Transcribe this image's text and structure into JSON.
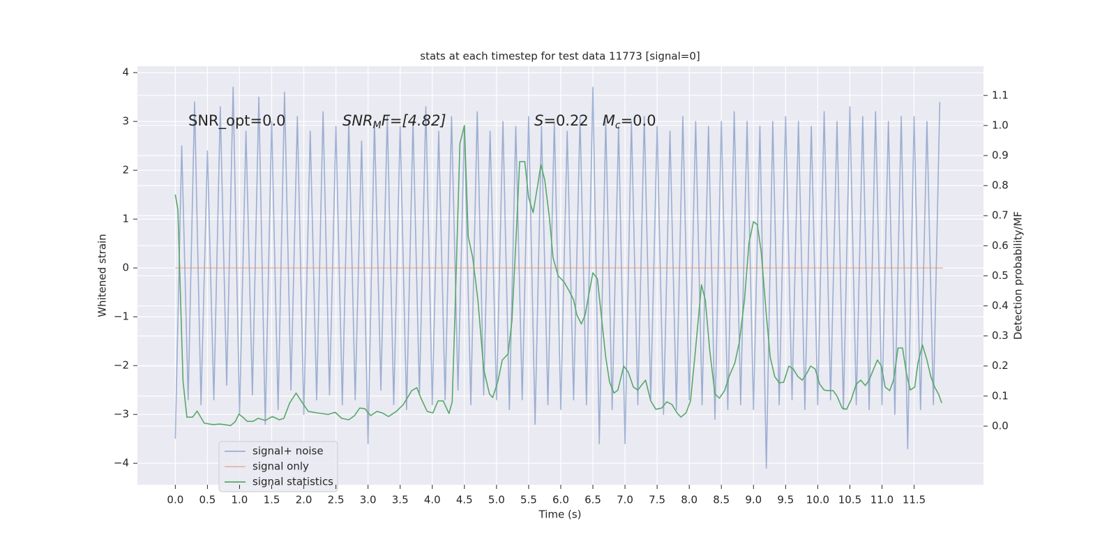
{
  "chart_data": {
    "type": "line",
    "title": "stats at each timestep for test data 11773 [signal=0]",
    "xlabel": "Time (s)",
    "ylabel": "Whitened strain",
    "y2label": "Detection probability/MF",
    "annotations": [
      {
        "text": "SNR_opt=0.0"
      },
      {
        "parts": [
          "SNR",
          "M",
          "F=[4.82]"
        ]
      },
      {
        "parts": [
          "S",
          "=0.22   ",
          "M",
          "c",
          "=0.0"
        ]
      }
    ],
    "xlim": [
      -0.59,
      12.58
    ],
    "ylim": [
      -4.44,
      4.13
    ],
    "y2lim": [
      -0.195,
      1.197
    ],
    "xticks": [
      {
        "value": 0,
        "label": "0.0"
      },
      0.5,
      {
        "value": 1,
        "label": "1.0"
      },
      1.5,
      {
        "value": 2,
        "label": "2.0"
      },
      2.5,
      {
        "value": 3,
        "label": "3.0"
      },
      3.5,
      {
        "value": 4,
        "label": "4.0"
      },
      4.5,
      {
        "value": 5,
        "label": "5.0"
      },
      5.5,
      {
        "value": 6,
        "label": "6.0"
      },
      6.5,
      {
        "value": 7,
        "label": "7.0"
      },
      7.5,
      {
        "value": 8,
        "label": "8.0"
      },
      8.5,
      {
        "value": 9,
        "label": "9.0"
      },
      9.5,
      {
        "value": 10,
        "label": "10.0"
      },
      10.5,
      {
        "value": 11,
        "label": "11.0"
      },
      11.5
    ],
    "yticks": [
      {
        "value": -4,
        "label": "−4"
      },
      {
        "value": -3,
        "label": "−3"
      },
      {
        "value": -2,
        "label": "−2"
      },
      {
        "value": -1,
        "label": "−1"
      },
      0,
      1,
      2,
      3,
      4
    ],
    "y2ticks": [
      {
        "value": 0,
        "label": "0.0"
      },
      0.1,
      0.2,
      0.3,
      0.4,
      0.5,
      0.6,
      0.7,
      0.8,
      0.9,
      {
        "value": 1,
        "label": "1.0"
      },
      1.1
    ],
    "grid": true,
    "legend": "lower left",
    "series": [
      {
        "name": "signal+ noise",
        "color": "#4c72b0",
        "opacity": 0.5,
        "x": [
          0.0,
          0.1,
          0.2,
          0.3,
          0.4,
          0.5,
          0.6,
          0.7,
          0.8,
          0.9,
          1.0,
          1.1,
          1.2,
          1.3,
          1.4,
          1.5,
          1.6,
          1.7,
          1.8,
          1.9,
          2.0,
          2.1,
          2.2,
          2.3,
          2.4,
          2.5,
          2.6,
          2.7,
          2.8,
          2.9,
          3.0,
          3.1,
          3.2,
          3.3,
          3.4,
          3.5,
          3.6,
          3.7,
          3.8,
          3.9,
          4.0,
          4.1,
          4.2,
          4.3,
          4.4,
          4.5,
          4.6,
          4.7,
          4.8,
          4.9,
          5.0,
          5.1,
          5.2,
          5.3,
          5.4,
          5.5,
          5.6,
          5.7,
          5.8,
          5.9,
          6.0,
          6.1,
          6.2,
          6.3,
          6.4,
          6.5,
          6.6,
          6.7,
          6.8,
          6.9,
          7.0,
          7.1,
          7.2,
          7.3,
          7.4,
          7.5,
          7.6,
          7.7,
          7.8,
          7.9,
          8.0,
          8.1,
          8.2,
          8.3,
          8.4,
          8.5,
          8.6,
          8.7,
          8.8,
          8.9,
          9.0,
          9.1,
          9.2,
          9.3,
          9.4,
          9.5,
          9.6,
          9.7,
          9.8,
          9.9,
          10.0,
          10.1,
          10.2,
          10.3,
          10.4,
          10.5,
          10.6,
          10.7,
          10.8,
          10.9,
          11.0,
          11.1,
          11.2,
          11.3,
          11.4,
          11.5,
          11.6,
          11.7,
          11.8,
          11.9
        ],
        "values": [
          -3.5,
          2.5,
          -2.7,
          3.4,
          -2.8,
          2.4,
          -2.7,
          3.3,
          -2.4,
          3.7,
          -3.0,
          2.8,
          -2.6,
          3.5,
          -3.2,
          3.0,
          -2.9,
          3.6,
          -2.5,
          3.1,
          -3.0,
          2.8,
          -2.7,
          3.2,
          -2.6,
          2.9,
          -2.8,
          3.0,
          -2.7,
          2.6,
          -3.6,
          3.0,
          -2.5,
          3.1,
          -2.8,
          2.9,
          -2.9,
          3.0,
          -2.6,
          3.3,
          -2.8,
          2.8,
          -2.7,
          3.1,
          -2.5,
          2.9,
          -2.8,
          3.2,
          -2.6,
          2.8,
          -2.7,
          3.0,
          -2.9,
          2.9,
          -2.7,
          3.1,
          -3.2,
          2.9,
          -2.8,
          3.0,
          -2.9,
          2.8,
          -2.7,
          3.1,
          -2.8,
          3.7,
          -3.6,
          3.0,
          -2.9,
          2.9,
          -3.6,
          3.0,
          -2.8,
          3.1,
          -2.7,
          2.9,
          -3.0,
          2.8,
          -2.9,
          3.1,
          -2.7,
          3.0,
          -2.8,
          2.9,
          -3.1,
          3.0,
          -2.9,
          3.2,
          -2.8,
          3.0,
          -2.9,
          2.9,
          -4.1,
          3.0,
          -2.8,
          3.1,
          -2.7,
          3.0,
          -2.9,
          2.9,
          -2.8,
          3.2,
          -2.7,
          3.0,
          -2.9,
          3.3,
          -2.8,
          3.1,
          -2.9,
          3.2,
          -2.8,
          3.0,
          -3.0,
          3.1,
          -3.7,
          3.1,
          -2.9,
          3.0,
          -2.8,
          3.4
        ]
      },
      {
        "name": "signal only",
        "color": "#dd8452",
        "opacity": 0.5,
        "x": [
          0.0,
          11.95
        ],
        "values": [
          0,
          0
        ]
      },
      {
        "name": "signal statistics",
        "color": "#55a868",
        "opacity": 1,
        "axis": "y2",
        "x": [
          0,
          0.04,
          0.12,
          0.18,
          0.27,
          0.34,
          0.45,
          0.59,
          0.69,
          0.86,
          0.93,
          0.99,
          1.05,
          1.12,
          1.21,
          1.29,
          1.4,
          1.51,
          1.62,
          1.69,
          1.78,
          1.88,
          1.98,
          2.07,
          2.21,
          2.38,
          2.49,
          2.59,
          2.7,
          2.79,
          2.87,
          2.95,
          3.04,
          3.14,
          3.22,
          3.32,
          3.44,
          3.55,
          3.68,
          3.76,
          3.82,
          3.92,
          4.01,
          4.09,
          4.17,
          4.26,
          4.31,
          4.35,
          4.43,
          4.5,
          4.56,
          4.63,
          4.71,
          4.8,
          4.89,
          4.94,
          5.02,
          5.09,
          5.18,
          5.24,
          5.31,
          5.36,
          5.44,
          5.5,
          5.57,
          5.64,
          5.69,
          5.75,
          5.82,
          5.88,
          5.96,
          6.05,
          6.13,
          6.2,
          6.25,
          6.32,
          6.38,
          6.43,
          6.5,
          6.57,
          6.63,
          6.7,
          6.76,
          6.83,
          6.89,
          6.98,
          7.05,
          7.13,
          7.2,
          7.26,
          7.32,
          7.4,
          7.48,
          7.57,
          7.65,
          7.73,
          7.81,
          7.87,
          7.95,
          8.02,
          8.1,
          8.19,
          8.25,
          8.32,
          8.4,
          8.47,
          8.55,
          8.62,
          8.71,
          8.78,
          8.86,
          8.93,
          9.0,
          9.06,
          9.12,
          9.2,
          9.26,
          9.33,
          9.4,
          9.47,
          9.55,
          9.62,
          9.69,
          9.76,
          9.83,
          9.89,
          9.96,
          10.03,
          10.1,
          10.16,
          10.24,
          10.3,
          10.38,
          10.45,
          10.52,
          10.6,
          10.67,
          10.74,
          10.8,
          10.87,
          10.93,
          10.99,
          11.05,
          11.12,
          11.18,
          11.25,
          11.32,
          11.38,
          11.44,
          11.51,
          11.56,
          11.63,
          11.7,
          11.76,
          11.82,
          11.88,
          11.93
        ],
        "values": [
          0.77,
          0.72,
          0.15,
          0.03,
          0.03,
          0.05,
          0.01,
          0.005,
          0.007,
          0.002,
          0.014,
          0.04,
          0.03,
          0.016,
          0.016,
          0.026,
          0.019,
          0.032,
          0.021,
          0.026,
          0.077,
          0.11,
          0.077,
          0.049,
          0.044,
          0.039,
          0.046,
          0.026,
          0.021,
          0.035,
          0.06,
          0.058,
          0.035,
          0.049,
          0.044,
          0.032,
          0.049,
          0.072,
          0.118,
          0.128,
          0.095,
          0.049,
          0.044,
          0.084,
          0.084,
          0.042,
          0.081,
          0.35,
          0.94,
          1.0,
          0.63,
          0.56,
          0.42,
          0.19,
          0.107,
          0.095,
          0.148,
          0.22,
          0.24,
          0.35,
          0.65,
          0.88,
          0.88,
          0.76,
          0.71,
          0.8,
          0.87,
          0.82,
          0.7,
          0.56,
          0.5,
          0.48,
          0.45,
          0.42,
          0.37,
          0.34,
          0.37,
          0.43,
          0.51,
          0.49,
          0.37,
          0.23,
          0.146,
          0.11,
          0.12,
          0.2,
          0.18,
          0.13,
          0.12,
          0.137,
          0.153,
          0.084,
          0.056,
          0.06,
          0.081,
          0.072,
          0.044,
          0.03,
          0.044,
          0.084,
          0.26,
          0.47,
          0.42,
          0.25,
          0.107,
          0.093,
          0.118,
          0.165,
          0.21,
          0.28,
          0.42,
          0.61,
          0.68,
          0.67,
          0.58,
          0.37,
          0.23,
          0.165,
          0.144,
          0.146,
          0.2,
          0.19,
          0.165,
          0.153,
          0.176,
          0.2,
          0.19,
          0.14,
          0.12,
          0.118,
          0.118,
          0.1,
          0.06,
          0.056,
          0.088,
          0.14,
          0.153,
          0.135,
          0.153,
          0.19,
          0.22,
          0.2,
          0.13,
          0.118,
          0.153,
          0.26,
          0.26,
          0.176,
          0.12,
          0.13,
          0.21,
          0.27,
          0.22,
          0.165,
          0.13,
          0.107,
          0.077
        ]
      }
    ]
  }
}
